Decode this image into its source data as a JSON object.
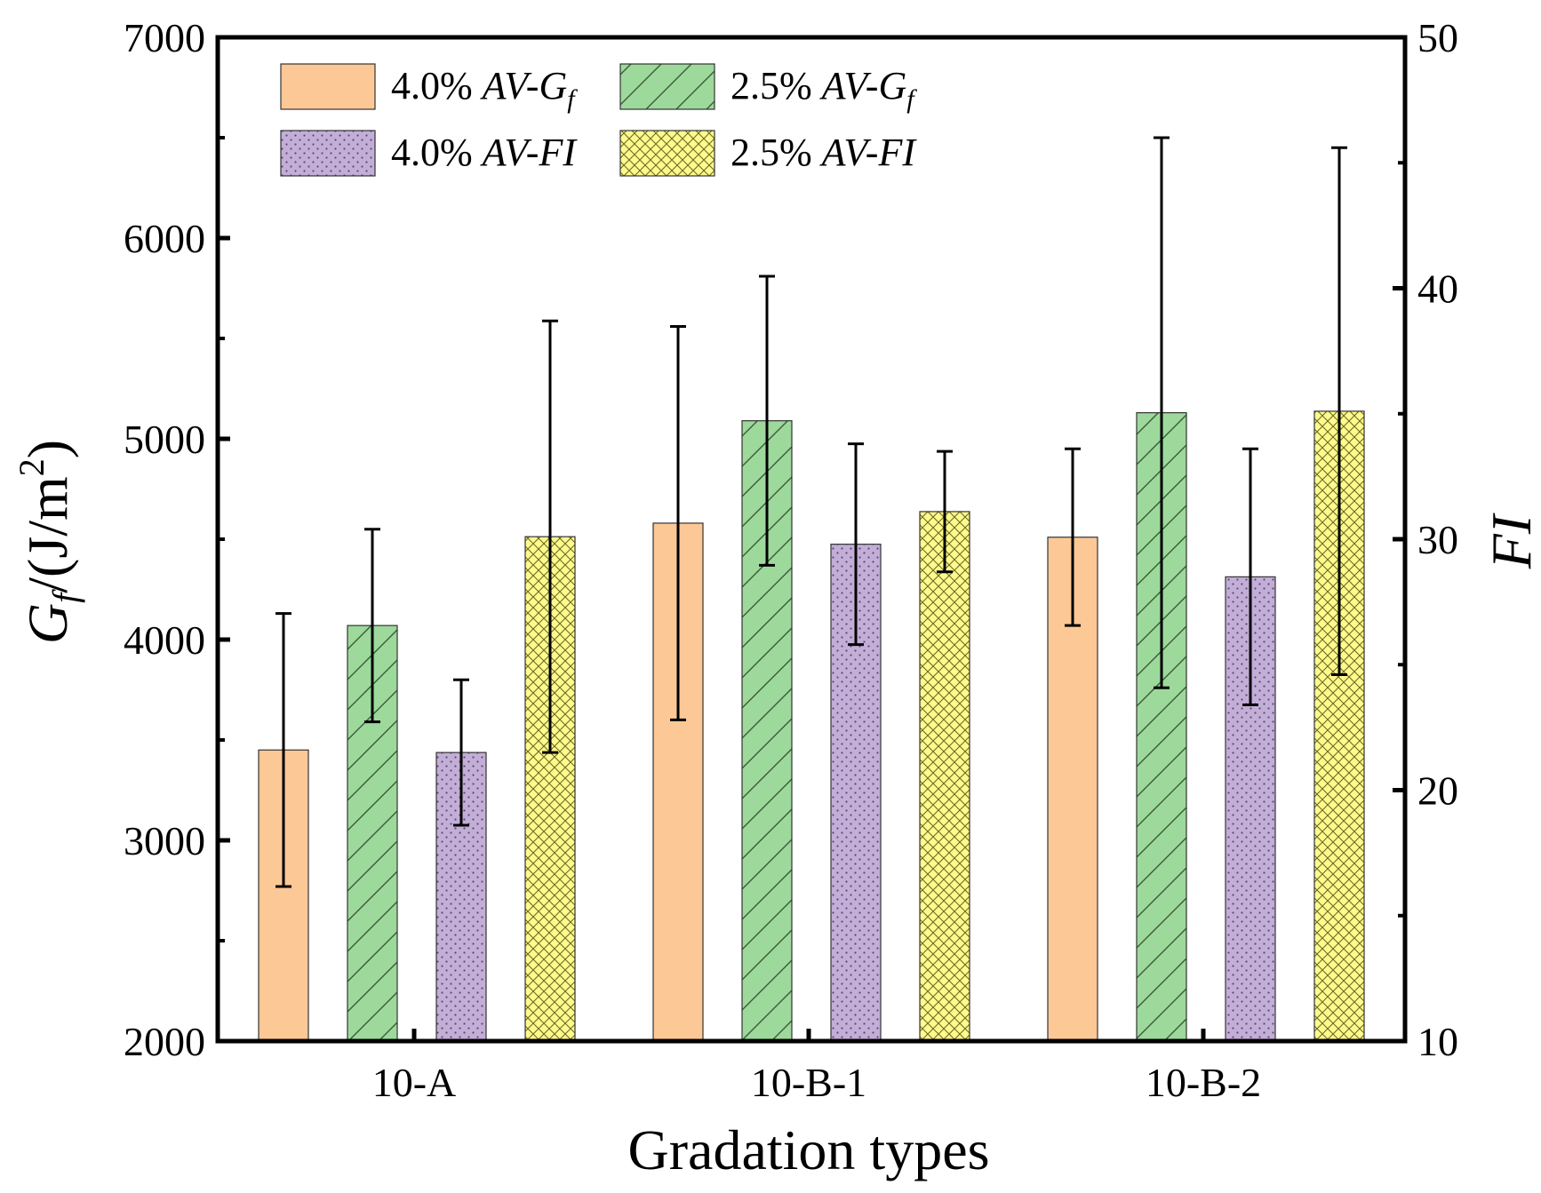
{
  "chart_data": {
    "type": "bar",
    "xlabel": "Gradation types",
    "ylabel_left": {
      "main": "G",
      "sub": "f",
      "rest": "/(J/m",
      "sup": "2",
      "close": ")"
    },
    "ylabel_right": "FI",
    "categories": [
      "10-A",
      "10-B-1",
      "10-B-2"
    ],
    "ylim_left": [
      2000,
      7000
    ],
    "yticks_left": [
      2000,
      3000,
      4000,
      5000,
      6000,
      7000
    ],
    "ylim_right": [
      10,
      50
    ],
    "yticks_right": [
      10,
      20,
      30,
      40,
      50
    ],
    "grid": false,
    "legend_position": "top-left",
    "series": [
      {
        "name": "4.0% AV-Gf",
        "legend": {
          "pct": "4.0% ",
          "it": "AV-G",
          "sub": "f"
        },
        "axis": "left",
        "color": "#fcc896",
        "pattern": "none",
        "values": [
          3450,
          4580,
          4510
        ],
        "errors": [
          680,
          980,
          440
        ]
      },
      {
        "name": "2.5% AV-Gf",
        "legend": {
          "pct": "2.5% ",
          "it": "AV-G",
          "sub": "f"
        },
        "axis": "left",
        "color": "#9dd99b",
        "pattern": "diagonal",
        "values": [
          4070,
          5090,
          5130
        ],
        "errors": [
          480,
          720,
          1370
        ]
      },
      {
        "name": "4.0% AV-FI",
        "legend": {
          "pct": "4.0% ",
          "it": "AV-FI",
          "sub": ""
        },
        "axis": "right",
        "color": "#c3aed8",
        "pattern": "dots",
        "values": [
          21.5,
          29.8,
          28.5
        ],
        "errors": [
          2.9,
          4.0,
          5.1
        ]
      },
      {
        "name": "2.5% AV-FI",
        "legend": {
          "pct": "2.5% ",
          "it": "AV-FI",
          "sub": ""
        },
        "axis": "right",
        "color": "#fdfa8e",
        "pattern": "crosshatch",
        "values": [
          30.1,
          31.1,
          35.1
        ],
        "errors": [
          8.6,
          2.4,
          10.5
        ]
      }
    ]
  }
}
